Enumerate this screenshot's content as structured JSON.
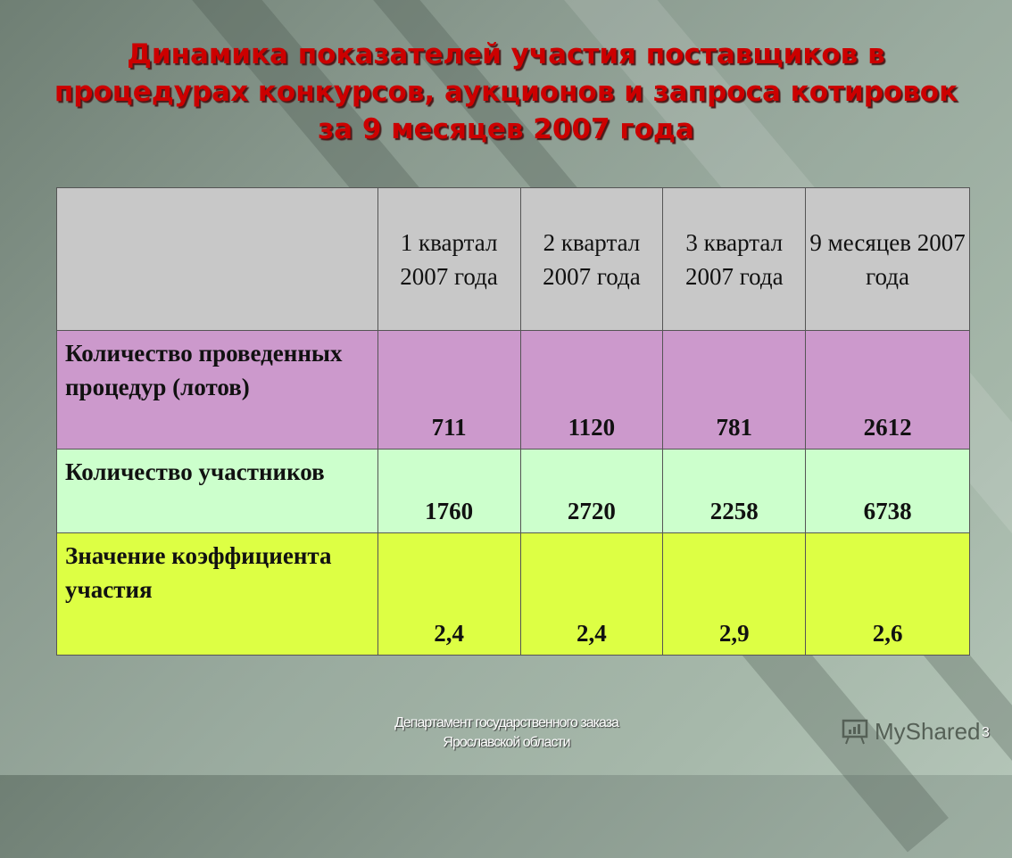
{
  "title": "Динамика показателей участия поставщиков в процедурах конкурсов, аукционов и запроса котировок за 9 месяцев 2007 года",
  "table": {
    "headers": [
      "",
      "1 квартал 2007 года",
      "2 квартал 2007 года",
      "3 квартал 2007 года",
      "9 месяцев 2007 года"
    ],
    "rows": [
      {
        "label": "Количество проведенных процедур (лотов)",
        "values": [
          "711",
          "1120",
          "781",
          "2612"
        ],
        "color": "#cc99cc"
      },
      {
        "label": "Количество участников",
        "values": [
          "1760",
          "2720",
          "2258",
          "6738"
        ],
        "color": "#ccffcc"
      },
      {
        "label": "Значение коэффициента участия",
        "values": [
          "2,4",
          "2,4",
          "2,9",
          "2,6"
        ],
        "color": "#ddff44"
      }
    ]
  },
  "footer": {
    "line1": "Департамент государственного заказа",
    "line2": "Ярославской области",
    "slide_number": "3"
  },
  "watermark": {
    "text": "MyShared",
    "icon": "presentation-board-icon"
  }
}
